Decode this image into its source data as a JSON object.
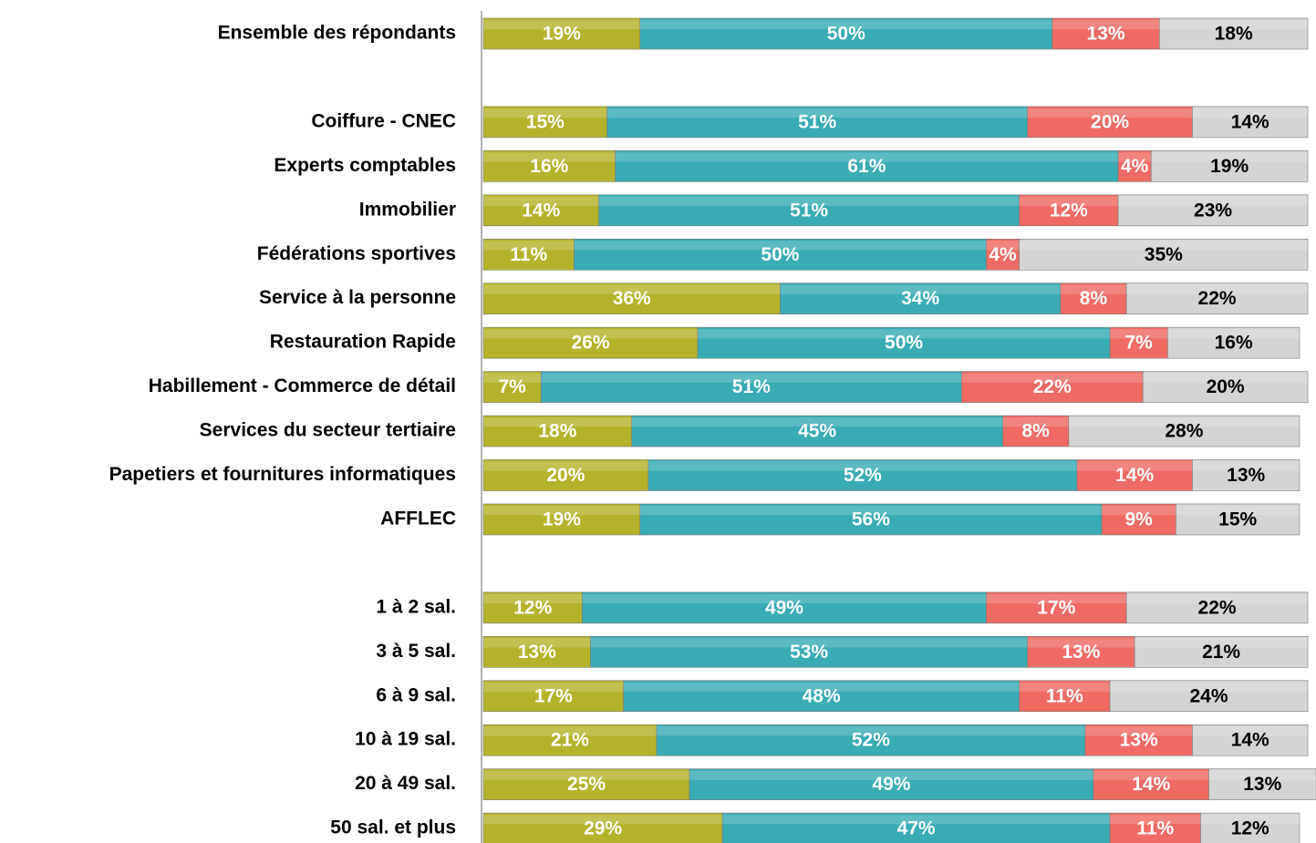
{
  "chart_data": {
    "type": "stacked-bar",
    "orientation": "horizontal",
    "categories": [
      "Ensemble des répondants",
      null,
      "Coiffure - CNEC",
      "Experts comptables",
      "Immobilier",
      "Fédérations sportives",
      "Service à la personne",
      "Restauration Rapide",
      "Habillement - Commerce de détail",
      "Services du secteur tertiaire",
      "Papetiers et fournitures informatiques",
      "AFFLEC",
      null,
      "1 à 2 sal.",
      "3 à 5 sal.",
      "6 à 9 sal.",
      "10 à 19 sal.",
      "20 à 49 sal.",
      "50 sal. et plus"
    ],
    "xlim": [
      0,
      100
    ],
    "series": [
      {
        "color": "#b4b22a",
        "label_color": "#ffffff",
        "values": [
          19,
          null,
          15,
          16,
          14,
          11,
          36,
          26,
          7,
          18,
          20,
          19,
          null,
          12,
          13,
          17,
          21,
          25,
          29
        ],
        "value_labels": [
          "19%",
          null,
          "15%",
          "16%",
          "14%",
          "11%",
          "36%",
          "26%",
          "7%",
          "18%",
          "20%",
          "19%",
          null,
          "12%",
          "13%",
          "17%",
          "21%",
          "25%",
          "29%"
        ]
      },
      {
        "color": "#38abb5",
        "label_color": "#ffffff",
        "values": [
          50,
          null,
          51,
          61,
          51,
          50,
          34,
          50,
          51,
          45,
          52,
          56,
          null,
          49,
          53,
          48,
          52,
          49,
          47
        ],
        "value_labels": [
          "50%",
          null,
          "51%",
          "61%",
          "51%",
          "50%",
          "34%",
          "50%",
          "51%",
          "45%",
          "52%",
          "56%",
          null,
          "49%",
          "53%",
          "48%",
          "52%",
          "49%",
          "47%"
        ]
      },
      {
        "color": "#ef6a62",
        "label_color": "#ffffff",
        "values": [
          13,
          null,
          20,
          4,
          12,
          4,
          8,
          7,
          22,
          8,
          14,
          9,
          null,
          17,
          13,
          11,
          13,
          14,
          11
        ],
        "value_labels": [
          "13%",
          null,
          "20%",
          "4%",
          "12%",
          "4%",
          "8%",
          "7%",
          "22%",
          "8%",
          "14%",
          "9%",
          null,
          "17%",
          "13%",
          "11%",
          "13%",
          "14%",
          "11%"
        ]
      },
      {
        "color": "#d4d4d4",
        "label_color": "#000000",
        "values": [
          18,
          null,
          14,
          19,
          23,
          35,
          22,
          16,
          20,
          28,
          13,
          15,
          null,
          22,
          21,
          24,
          14,
          13,
          12
        ],
        "value_labels": [
          "18%",
          null,
          "14%",
          "19%",
          "23%",
          "35%",
          "22%",
          "16%",
          "20%",
          "28%",
          "13%",
          "15%",
          null,
          "22%",
          "21%",
          "24%",
          "14%",
          "13%",
          "12%"
        ]
      }
    ]
  }
}
